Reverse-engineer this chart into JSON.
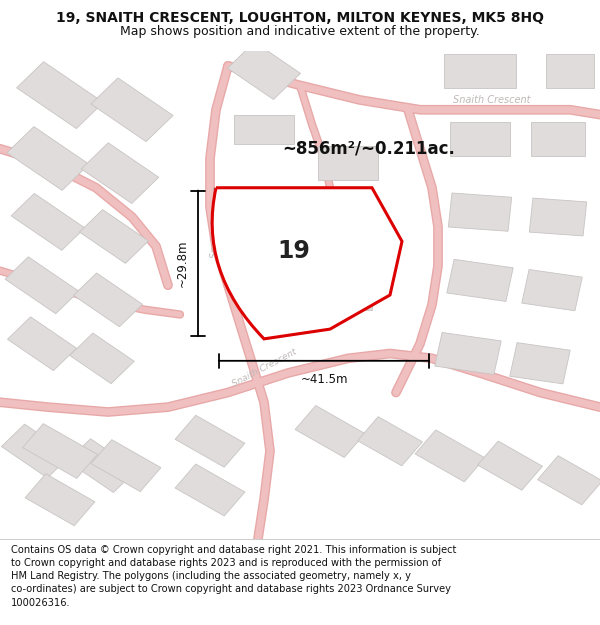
{
  "title_line1": "19, SNAITH CRESCENT, LOUGHTON, MILTON KEYNES, MK5 8HQ",
  "title_line2": "Map shows position and indicative extent of the property.",
  "footer_text": "Contains OS data © Crown copyright and database right 2021. This information is subject to Crown copyright and database rights 2023 and is reproduced with the permission of HM Land Registry. The polygons (including the associated geometry, namely x, y co-ordinates) are subject to Crown copyright and database rights 2023 Ordnance Survey 100026316.",
  "area_label": "~856m²/~0.211ac.",
  "number_label": "19",
  "dim_width": "~41.5m",
  "dim_height": "~29.8m",
  "road_label_top": "Snaith Crescent",
  "road_label_left": "Snaith Crescent",
  "road_label_bottom": "Snaith Crescent",
  "map_bg": "#fafafa",
  "plot_edge_color": "#dd0000",
  "road_color": "#f0c0c0",
  "road_edge_color": "#e8a8a8",
  "building_color": "#e0dcdc",
  "building_edge": "#c8c4c4",
  "dim_color": "#111111"
}
